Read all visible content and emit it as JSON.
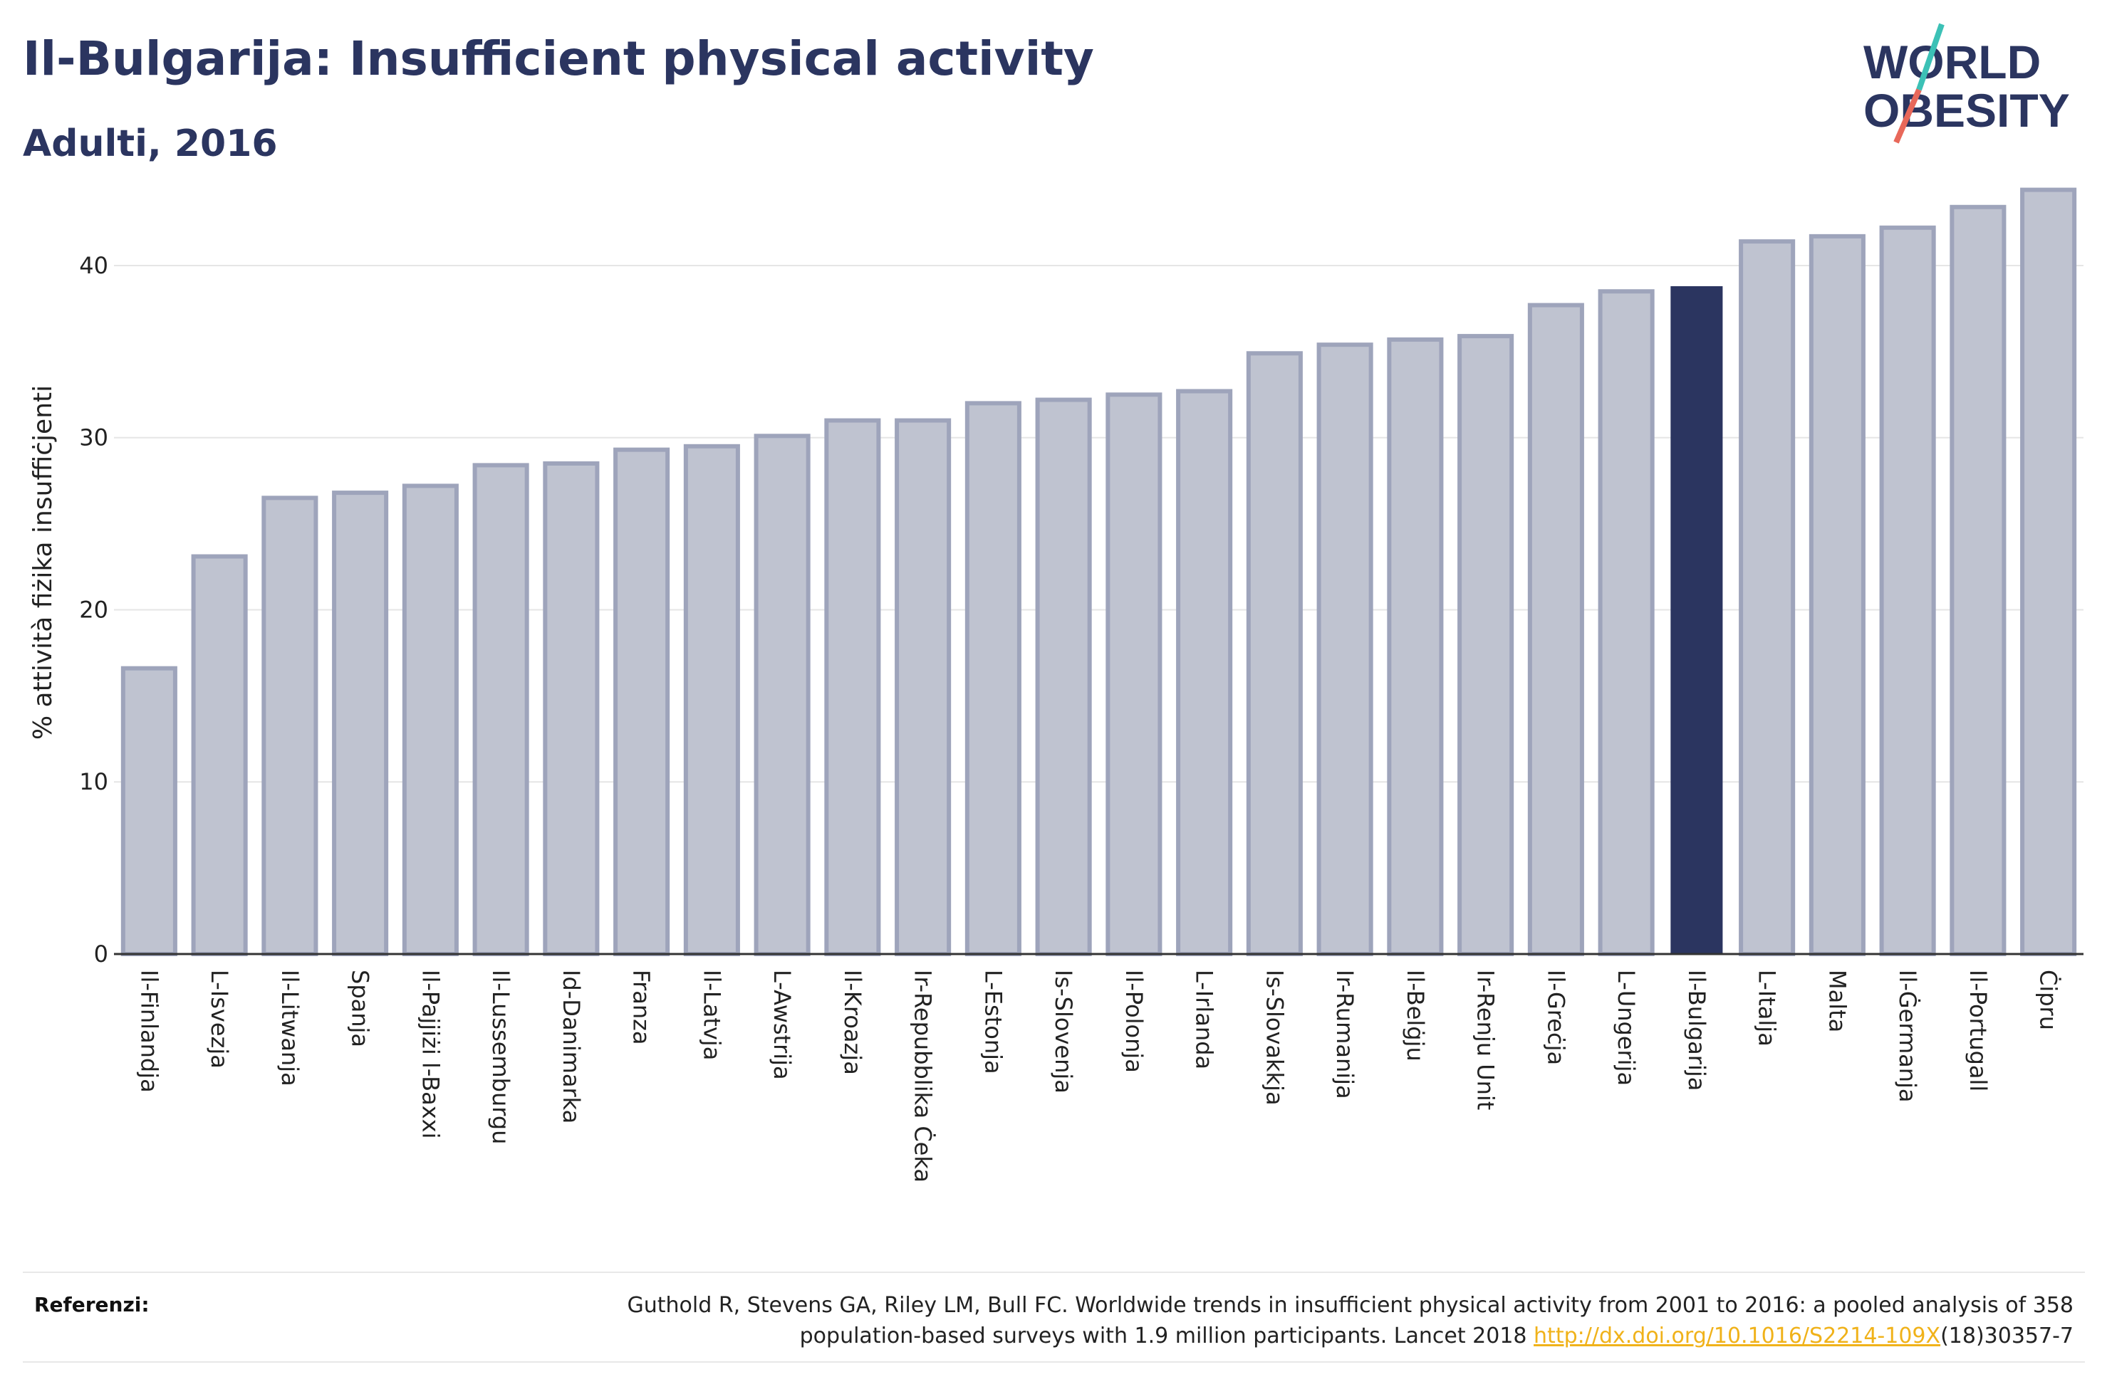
{
  "title": "Il-Bulgarija: Insufficient physical activity",
  "subtitle": "Adulti, 2016",
  "logo": {
    "line1": "WORLD",
    "line2": "OBESITY"
  },
  "colors": {
    "highlight": "#2b3560",
    "bar": "#bfc3d0",
    "bar_stroke": "#9ea4bb",
    "grid": "#e6e6e6",
    "slash_teal": "#3cc1b6",
    "slash_red": "#e8685a"
  },
  "chart_data": {
    "type": "bar",
    "ylabel": "% attività fiżika insuffiċjenti",
    "ylim": [
      0,
      45.5
    ],
    "yticks": [
      0,
      10,
      20,
      30,
      40
    ],
    "grid": true,
    "highlight_category": "Il-Bulgarija",
    "categories": [
      "Il-Finlandja",
      "L-Isvezja",
      "Il-Litwanja",
      "Spanja",
      "Il-Pajjiżi l-Baxxi",
      "Il-Lussemburgu",
      "Id-Danimarka",
      "Franza",
      "Il-Latvja",
      "L-Awstrija",
      "Il-Kroazja",
      "Ir-Repubblika Ċeka",
      "L-Estonja",
      "Is-Slovenja",
      "Il-Polonja",
      "L-Irlanda",
      "Is-Slovakkja",
      "Ir-Rumanija",
      "Il-Belġju",
      "Ir-Renju Unit",
      "Il-Greċja",
      "L-Ungerija",
      "Il-Bulgarija",
      "L-Italja",
      "Malta",
      "Il-Ġermanja",
      "Il-Portugall",
      "Ċipru"
    ],
    "values": [
      16.6,
      23.1,
      26.5,
      26.8,
      27.2,
      28.4,
      28.5,
      29.3,
      29.5,
      30.1,
      31.0,
      31.0,
      32.0,
      32.2,
      32.5,
      32.7,
      34.9,
      35.4,
      35.7,
      35.9,
      37.7,
      38.5,
      38.8,
      41.4,
      41.7,
      42.2,
      43.4,
      44.4
    ]
  },
  "references": {
    "label": "Referenzi:",
    "text_line1": "Guthold R, Stevens GA, Riley LM, Bull FC. Worldwide trends in insufficient physical activity from 2001 to 2016: a pooled analysis of 358",
    "text_line2_prefix": "population-based surveys with 1.9 million participants. Lancet 2018 ",
    "link": "http://dx.doi.org/10.1016/S2214-109X",
    "text_line2_suffix": "(18)30357-7"
  }
}
